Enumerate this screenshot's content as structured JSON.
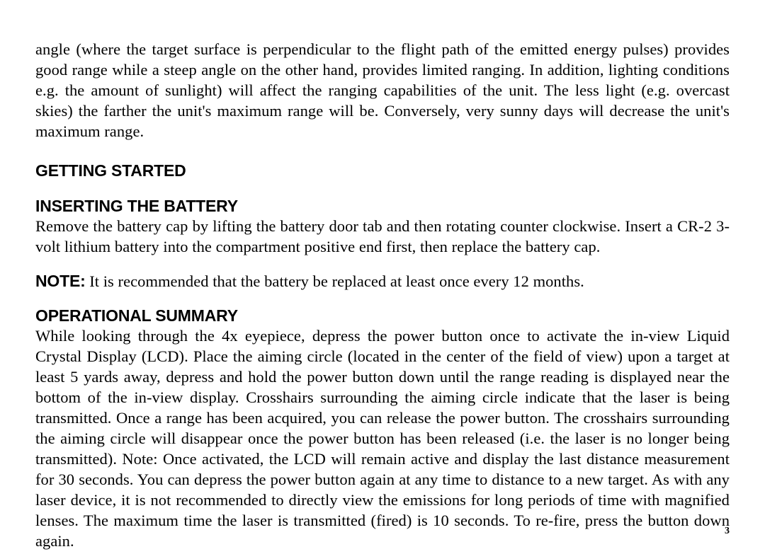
{
  "para_intro": "angle (where the target surface is perpendicular to the flight path of the emitted energy pulses) provides good range while a steep angle on the other hand, provides limited ranging. In addition, lighting conditions e.g. the amount of sunlight) will affect the ranging capabilities of the unit. The less light (e.g. overcast skies) the farther the unit's maximum range will be. Conversely, very sunny days will decrease the unit's maximum range.",
  "heading_getting_started": "GETTING STARTED",
  "heading_inserting_battery": "INSERTING THE BATTERY",
  "para_battery": "Remove the battery cap by lifting the battery door tab and then rotating counter clockwise. Insert a CR-2 3-volt lithium battery into the compartment positive end first, then replace the battery cap.",
  "note_label": "NOTE:",
  "note_text": " It is recommended that the battery be replaced at least once every 12 months.",
  "heading_operational_summary": "OPERATIONAL SUMMARY",
  "para_operational": "While looking through the 4x eyepiece, depress the power button once to activate the in-view Liquid Crystal Display (LCD). Place the aiming circle (located in the center of the field of view) upon a target at least 5 yards away, depress and hold the power button down until the range reading is displayed near the bottom of the in-view display. Crosshairs surrounding the aiming circle indicate that the laser is being transmitted. Once a range has been acquired, you can release the power button. The crosshairs surrounding the aiming circle will disappear once the power button has been released (i.e. the laser is no longer being transmitted). Note: Once activated, the LCD will remain active and display the last distance measurement for 30 seconds. You can depress the power button again at any time to distance to a new target. As with any laser device, it is not recommended to directly view the emissions for long periods of time with magnified lenses. The maximum time the laser is transmitted (fired) is 10 seconds. To re-fire, press the button down again.",
  "page_number": "3"
}
